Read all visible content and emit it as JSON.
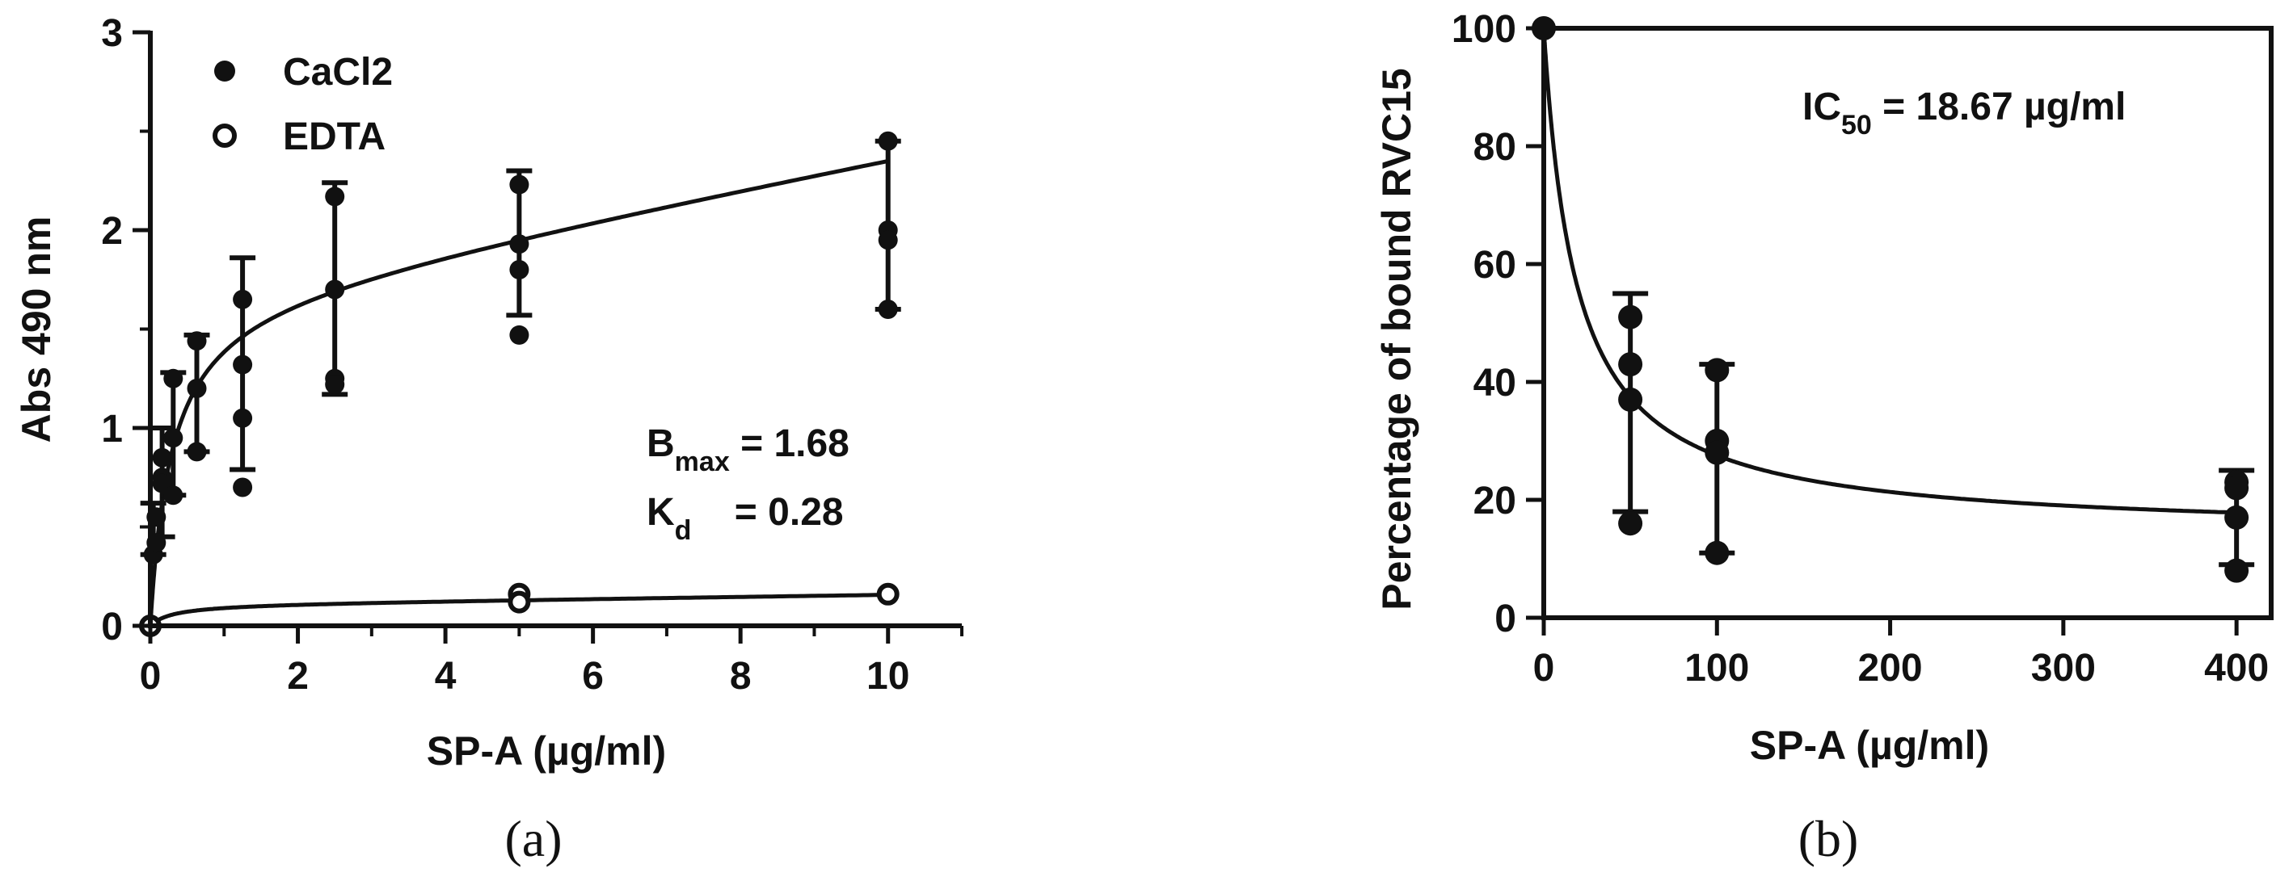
{
  "colors": {
    "ink": "#111111",
    "background": "#ffffff"
  },
  "chart_data": [
    {
      "panel_label_parts": [
        "(",
        "a",
        ")"
      ],
      "type": "scatter",
      "xlabel": "SP-A (µg/ml)",
      "ylabel": "Abs 490 nm",
      "xlim": [
        0,
        11
      ],
      "ylim": [
        0,
        3
      ],
      "xticks": [
        0,
        2,
        4,
        6,
        8,
        10
      ],
      "yticks": [
        0,
        1,
        2,
        3
      ],
      "xtick_labels": [
        "0",
        "2",
        "4",
        "6",
        "8",
        "10"
      ],
      "ytick_labels": [
        "0",
        "1",
        "2",
        "3"
      ],
      "legend_placement": "top-left",
      "grid": false,
      "annotation": {
        "bmax_main": "B",
        "bmax_sub": "max",
        "bmax_value": " = 1.68",
        "kd_main": "K",
        "kd_sub": "d",
        "kd_value": "    = 0.28"
      },
      "series": [
        {
          "name": "CaCl2",
          "marker": "filled-circle",
          "points": [
            [
              0,
              0
            ],
            [
              0.04,
              0.36
            ],
            [
              0.08,
              0.42
            ],
            [
              0.08,
              0.55
            ],
            [
              0.16,
              0.85
            ],
            [
              0.16,
              0.75
            ],
            [
              0.16,
              0.72
            ],
            [
              0.31,
              0.95
            ],
            [
              0.31,
              0.66
            ],
            [
              0.31,
              1.25
            ],
            [
              0.63,
              1.2
            ],
            [
              0.63,
              0.88
            ],
            [
              0.63,
              1.44
            ],
            [
              1.25,
              1.65
            ],
            [
              1.25,
              1.32
            ],
            [
              1.25,
              1.05
            ],
            [
              1.25,
              0.7
            ],
            [
              2.5,
              2.17
            ],
            [
              2.5,
              1.7
            ],
            [
              2.5,
              1.25
            ],
            [
              2.5,
              1.22
            ],
            [
              5,
              2.23
            ],
            [
              5,
              1.93
            ],
            [
              5,
              1.8
            ],
            [
              5,
              1.47
            ],
            [
              10,
              2.45
            ],
            [
              10,
              2.0
            ],
            [
              10,
              1.95
            ],
            [
              10,
              1.6
            ]
          ],
          "error_bars": [
            {
              "x": 0.04,
              "low": 0.36,
              "high": 0.62
            },
            {
              "x": 0.16,
              "low": 0.45,
              "high": 1.0
            },
            {
              "x": 0.31,
              "low": 0.66,
              "high": 1.28
            },
            {
              "x": 0.63,
              "low": 0.88,
              "high": 1.47
            },
            {
              "x": 1.25,
              "low": 0.79,
              "high": 1.86
            },
            {
              "x": 2.5,
              "low": 1.17,
              "high": 2.24
            },
            {
              "x": 5,
              "low": 1.57,
              "high": 2.3
            },
            {
              "x": 10,
              "low": 1.6,
              "high": 2.45
            }
          ],
          "fit": {
            "model": "one-site specific binding",
            "bmax": 1.68,
            "kd": 0.28,
            "slope": 0.0715
          }
        },
        {
          "name": "EDTA",
          "marker": "open-circle",
          "points": [
            [
              0,
              0.0
            ],
            [
              5,
              0.16
            ],
            [
              5,
              0.12
            ],
            [
              10,
              0.16
            ]
          ],
          "fit": {
            "model": "one-site specific binding",
            "bmax": 0.11,
            "kd": 0.3,
            "slope": 0.005
          }
        }
      ]
    },
    {
      "panel_label_parts": [
        "(",
        "b",
        ")"
      ],
      "type": "scatter",
      "xlabel": "SP-A (µg/ml)",
      "ylabel": "Percentage of bound RVC15",
      "xlim": [
        0,
        420
      ],
      "ylim": [
        0,
        100
      ],
      "xticks": [
        0,
        100,
        200,
        300,
        400
      ],
      "yticks": [
        0,
        20,
        40,
        60,
        80,
        100
      ],
      "xtick_labels": [
        "0",
        "100",
        "200",
        "300",
        "400"
      ],
      "ytick_labels": [
        "0",
        "20",
        "40",
        "60",
        "80",
        "100"
      ],
      "grid": false,
      "annotation": {
        "ic_main": "IC",
        "ic_sub": "50",
        "ic_value": " = 18.67 µg/ml"
      },
      "series": [
        {
          "marker": "filled-circle",
          "points": [
            [
              0,
              100
            ],
            [
              50,
              51
            ],
            [
              50,
              43
            ],
            [
              50,
              37
            ],
            [
              50,
              16
            ],
            [
              100,
              42
            ],
            [
              100,
              30
            ],
            [
              100,
              28
            ],
            [
              100,
              11
            ],
            [
              400,
              23
            ],
            [
              400,
              22
            ],
            [
              400,
              17
            ],
            [
              400,
              8
            ]
          ],
          "error_bars": [
            {
              "x": 50,
              "low": 18,
              "high": 55
            },
            {
              "x": 100,
              "low": 11,
              "high": 43
            },
            {
              "x": 400,
              "low": 9,
              "high": 25
            }
          ],
          "fit": {
            "model": "inhibition curve",
            "top": 100,
            "bottom": 14,
            "ic50": 18.67
          }
        }
      ]
    }
  ]
}
